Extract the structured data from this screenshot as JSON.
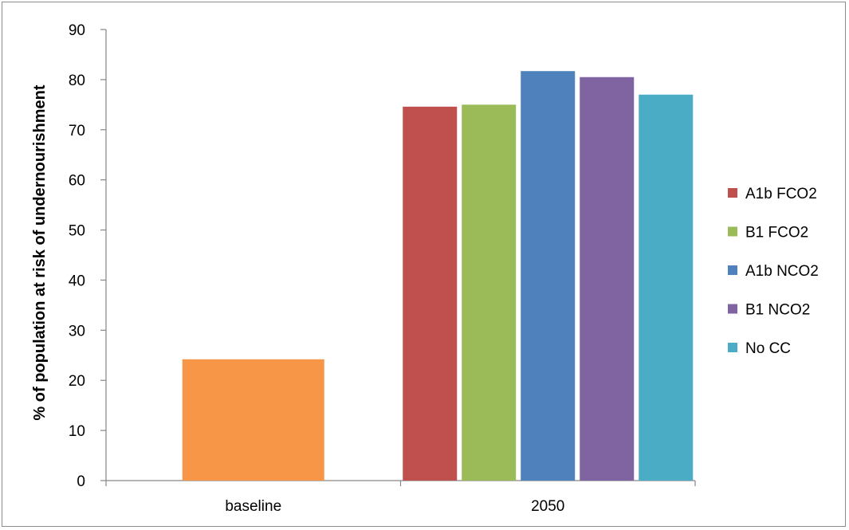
{
  "chart_data": {
    "type": "bar",
    "title": "",
    "xlabel": "",
    "ylabel": "% of population  at risk of undernourishment",
    "ylim": [
      0,
      90
    ],
    "yticks": [
      0,
      10,
      20,
      30,
      40,
      50,
      60,
      70,
      80,
      90
    ],
    "categories": [
      "baseline",
      "2050"
    ],
    "grid": false,
    "legend_position": "right",
    "baseline_series": {
      "category": "baseline",
      "value": 24.2,
      "color": "#f79646"
    },
    "series": [
      {
        "name": "A1b FCO2",
        "category": "2050",
        "value": 74.6,
        "color": "#c0504d"
      },
      {
        "name": "B1 FCO2",
        "category": "2050",
        "value": 75.0,
        "color": "#9bbb59"
      },
      {
        "name": "A1b NCO2",
        "category": "2050",
        "value": 81.7,
        "color": "#4f81bd"
      },
      {
        "name": "B1 NCO2",
        "category": "2050",
        "value": 80.5,
        "color": "#8064a2"
      },
      {
        "name": "No CC",
        "category": "2050",
        "value": 77.0,
        "color": "#4bacc6"
      }
    ]
  }
}
